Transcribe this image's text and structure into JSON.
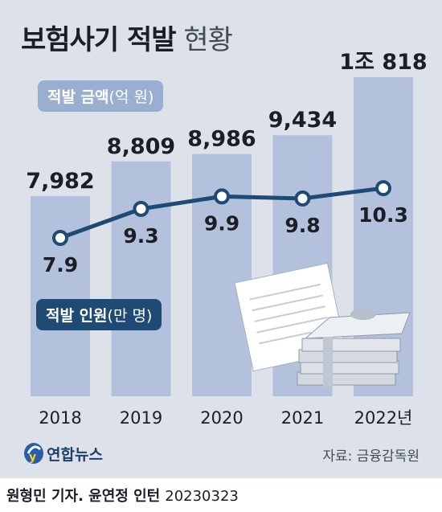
{
  "header": {
    "title_bold": "보험사기 적발",
    "title_light": "현황"
  },
  "chart_data": {
    "type": "bar",
    "categories": [
      "2018",
      "2019",
      "2020",
      "2021",
      "2022년"
    ],
    "series": [
      {
        "name": "적발 금액(억 원)",
        "type": "bar",
        "values": [
          7982,
          8809,
          8986,
          9434,
          10818
        ],
        "labels": [
          "7,982",
          "8,809",
          "8,986",
          "9,434",
          "1조 818"
        ]
      },
      {
        "name": "적발 인원(만 명)",
        "type": "line",
        "values": [
          7.9,
          9.3,
          9.9,
          9.8,
          10.3
        ],
        "labels": [
          "7.9",
          "9.3",
          "9.9",
          "9.8",
          "10.3"
        ]
      }
    ]
  },
  "legend": {
    "amount": {
      "bold": "적발 금액",
      "unit": "(억 원)"
    },
    "people": {
      "bold": "적발 인원",
      "unit": "(만 명)"
    }
  },
  "colors": {
    "bar": "#b3c1dd",
    "line": "#1f4a73",
    "amount_pill": "#9aaed0",
    "background": "#dde2ea"
  },
  "footer": {
    "logo_text": "연합뉴스",
    "source": "자료: 금융감독원",
    "credit_bold": "원형민 기자. 윤연정 인턴",
    "date": "20230323"
  }
}
